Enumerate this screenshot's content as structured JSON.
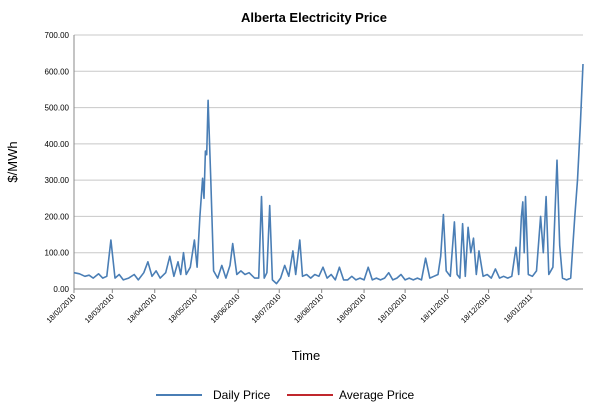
{
  "chart_data": {
    "type": "line",
    "title": "Alberta Electricity Price",
    "xlabel": "Time",
    "ylabel": "$/MWh",
    "ylim": [
      0,
      700
    ],
    "yticks": [
      "0.00",
      "100.00",
      "200.00",
      "300.00",
      "400.00",
      "500.00",
      "600.00",
      "700.00"
    ],
    "xlim": [
      "2010-02-18",
      "2011-02-25"
    ],
    "xticks": [
      "18/02/2010",
      "18/03/2010",
      "18/04/2010",
      "18/05/2010",
      "18/06/2010",
      "18/07/2010",
      "18/08/2010",
      "18/09/2010",
      "18/10/2010",
      "18/11/2010",
      "18/12/2010",
      "18/01/2011"
    ],
    "grid": "horizontal",
    "legend_position": "bottom",
    "colors": {
      "daily": "#4a7eb5",
      "average": "#c0272d",
      "grid": "#c8c8c8",
      "axis": "#888888"
    },
    "series": [
      {
        "name": "Daily Price",
        "points": [
          [
            "2010-02-18",
            45
          ],
          [
            "2010-02-22",
            42
          ],
          [
            "2010-02-26",
            35
          ],
          [
            "2010-03-01",
            38
          ],
          [
            "2010-03-04",
            30
          ],
          [
            "2010-03-08",
            42
          ],
          [
            "2010-03-11",
            30
          ],
          [
            "2010-03-14",
            35
          ],
          [
            "2010-03-17",
            135
          ],
          [
            "2010-03-20",
            30
          ],
          [
            "2010-03-23",
            40
          ],
          [
            "2010-03-26",
            25
          ],
          [
            "2010-03-30",
            30
          ],
          [
            "2010-04-03",
            40
          ],
          [
            "2010-04-06",
            25
          ],
          [
            "2010-04-10",
            45
          ],
          [
            "2010-04-13",
            75
          ],
          [
            "2010-04-16",
            35
          ],
          [
            "2010-04-19",
            50
          ],
          [
            "2010-04-22",
            30
          ],
          [
            "2010-04-26",
            45
          ],
          [
            "2010-04-29",
            90
          ],
          [
            "2010-05-02",
            35
          ],
          [
            "2010-05-05",
            75
          ],
          [
            "2010-05-07",
            40
          ],
          [
            "2010-05-09",
            100
          ],
          [
            "2010-05-11",
            40
          ],
          [
            "2010-05-14",
            60
          ],
          [
            "2010-05-17",
            135
          ],
          [
            "2010-05-19",
            60
          ],
          [
            "2010-05-21",
            200
          ],
          [
            "2010-05-23",
            305
          ],
          [
            "2010-05-24",
            250
          ],
          [
            "2010-05-25",
            380
          ],
          [
            "2010-05-26",
            370
          ],
          [
            "2010-05-27",
            520
          ],
          [
            "2010-05-29",
            300
          ],
          [
            "2010-05-31",
            50
          ],
          [
            "2010-06-03",
            30
          ],
          [
            "2010-06-06",
            65
          ],
          [
            "2010-06-09",
            30
          ],
          [
            "2010-06-12",
            65
          ],
          [
            "2010-06-14",
            125
          ],
          [
            "2010-06-17",
            40
          ],
          [
            "2010-06-20",
            50
          ],
          [
            "2010-06-23",
            40
          ],
          [
            "2010-06-26",
            45
          ],
          [
            "2010-06-30",
            30
          ],
          [
            "2010-07-03",
            30
          ],
          [
            "2010-07-05",
            255
          ],
          [
            "2010-07-07",
            30
          ],
          [
            "2010-07-09",
            45
          ],
          [
            "2010-07-11",
            230
          ],
          [
            "2010-07-13",
            25
          ],
          [
            "2010-07-16",
            15
          ],
          [
            "2010-07-19",
            30
          ],
          [
            "2010-07-22",
            65
          ],
          [
            "2010-07-25",
            35
          ],
          [
            "2010-07-28",
            105
          ],
          [
            "2010-07-30",
            40
          ],
          [
            "2010-08-02",
            135
          ],
          [
            "2010-08-04",
            35
          ],
          [
            "2010-08-07",
            40
          ],
          [
            "2010-08-10",
            30
          ],
          [
            "2010-08-13",
            40
          ],
          [
            "2010-08-16",
            35
          ],
          [
            "2010-08-19",
            60
          ],
          [
            "2010-08-22",
            30
          ],
          [
            "2010-08-25",
            40
          ],
          [
            "2010-08-28",
            25
          ],
          [
            "2010-08-31",
            60
          ],
          [
            "2010-09-03",
            25
          ],
          [
            "2010-09-06",
            25
          ],
          [
            "2010-09-09",
            35
          ],
          [
            "2010-09-12",
            25
          ],
          [
            "2010-09-15",
            30
          ],
          [
            "2010-09-18",
            25
          ],
          [
            "2010-09-21",
            60
          ],
          [
            "2010-09-24",
            25
          ],
          [
            "2010-09-27",
            30
          ],
          [
            "2010-09-30",
            25
          ],
          [
            "2010-10-03",
            30
          ],
          [
            "2010-10-06",
            45
          ],
          [
            "2010-10-09",
            25
          ],
          [
            "2010-10-12",
            30
          ],
          [
            "2010-10-15",
            40
          ],
          [
            "2010-10-18",
            25
          ],
          [
            "2010-10-21",
            30
          ],
          [
            "2010-10-24",
            25
          ],
          [
            "2010-10-27",
            30
          ],
          [
            "2010-10-30",
            25
          ],
          [
            "2010-11-02",
            85
          ],
          [
            "2010-11-05",
            30
          ],
          [
            "2010-11-08",
            35
          ],
          [
            "2010-11-11",
            40
          ],
          [
            "2010-11-13",
            90
          ],
          [
            "2010-11-15",
            205
          ],
          [
            "2010-11-17",
            50
          ],
          [
            "2010-11-20",
            35
          ],
          [
            "2010-11-23",
            185
          ],
          [
            "2010-11-25",
            40
          ],
          [
            "2010-11-27",
            30
          ],
          [
            "2010-11-29",
            180
          ],
          [
            "2010-12-01",
            35
          ],
          [
            "2010-12-03",
            170
          ],
          [
            "2010-12-05",
            100
          ],
          [
            "2010-12-07",
            140
          ],
          [
            "2010-12-09",
            40
          ],
          [
            "2010-12-11",
            105
          ],
          [
            "2010-12-14",
            35
          ],
          [
            "2010-12-17",
            40
          ],
          [
            "2010-12-20",
            30
          ],
          [
            "2010-12-23",
            55
          ],
          [
            "2010-12-26",
            30
          ],
          [
            "2010-12-29",
            35
          ],
          [
            "2011-01-01",
            30
          ],
          [
            "2011-01-04",
            35
          ],
          [
            "2011-01-07",
            115
          ],
          [
            "2011-01-09",
            40
          ],
          [
            "2011-01-11",
            200
          ],
          [
            "2011-01-12",
            240
          ],
          [
            "2011-01-13",
            100
          ],
          [
            "2011-01-14",
            255
          ],
          [
            "2011-01-16",
            40
          ],
          [
            "2011-01-19",
            35
          ],
          [
            "2011-01-22",
            50
          ],
          [
            "2011-01-25",
            200
          ],
          [
            "2011-01-27",
            100
          ],
          [
            "2011-01-29",
            255
          ],
          [
            "2011-01-31",
            40
          ],
          [
            "2011-02-03",
            60
          ],
          [
            "2011-02-06",
            355
          ],
          [
            "2011-02-08",
            120
          ],
          [
            "2011-02-10",
            30
          ],
          [
            "2011-02-13",
            25
          ],
          [
            "2011-02-16",
            30
          ],
          [
            "2011-02-19",
            200
          ],
          [
            "2011-02-21",
            300
          ],
          [
            "2011-02-23",
            450
          ],
          [
            "2011-02-25",
            620
          ]
        ]
      },
      {
        "name": "Average Price",
        "points": []
      }
    ]
  }
}
